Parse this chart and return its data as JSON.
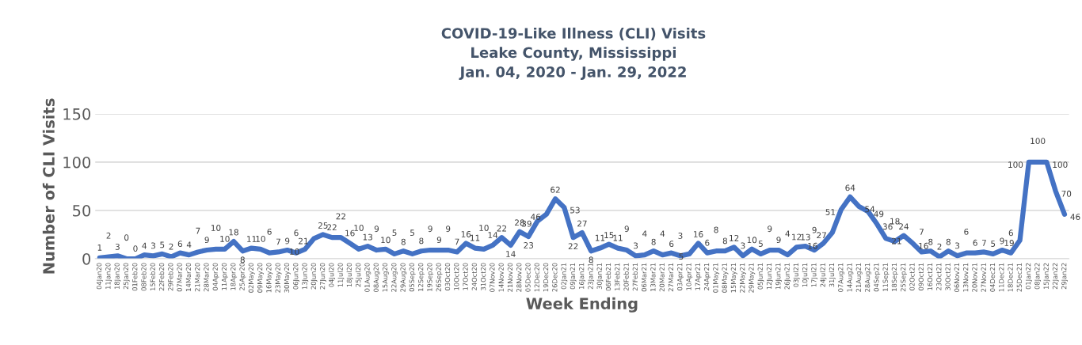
{
  "chart_data": {
    "type": "line",
    "title": "COVID-19-Like Illness (CLI) Visits\nLeake County, Mississippi\nJan. 04, 2020 - Jan. 29, 2022",
    "xlabel": "Week Ending",
    "ylabel": "Number of CLI Visits",
    "categories": [
      "04Jan20",
      "11Jan20",
      "18Jan20",
      "25Jan20",
      "01Feb20",
      "08Feb20",
      "15Feb20",
      "22Feb20",
      "29Feb20",
      "07Mar20",
      "14Mar20",
      "21Mar20",
      "28Mar20",
      "04Apr20",
      "11Apr20",
      "18Apr20",
      "25Apr20",
      "02May20",
      "09May20",
      "16May20",
      "23May20",
      "30May20",
      "06Jun20",
      "13Jun20",
      "20Jun20",
      "27Jun20",
      "04Jul20",
      "11Jul20",
      "18Jul20",
      "25Jul20",
      "01Aug20",
      "08Aug20",
      "15Aug20",
      "22Aug20",
      "29Aug20",
      "05Sep20",
      "12Sep20",
      "19Sep20",
      "26Sep20",
      "03Oct20",
      "10Oct20",
      "17Oct20",
      "24Oct20",
      "31Oct20",
      "07Nov20",
      "14Nov20",
      "21Nov20",
      "28Nov20",
      "05Dec20",
      "12Dec20",
      "19Dec20",
      "26Dec20",
      "02Jan21",
      "09Jan21",
      "16Jan21",
      "23Jan21",
      "30Jan21",
      "06Feb21",
      "13Feb21",
      "20Feb21",
      "27Feb21",
      "06Mar21",
      "13Mar21",
      "20Mar21",
      "27Mar21",
      "03Apr21",
      "10Apr21",
      "17Apr21",
      "24Apr21",
      "01May21",
      "08May21",
      "15May21",
      "22May21",
      "29May21",
      "05Jun21",
      "12Jun21",
      "19Jun21",
      "26Jun21",
      "03Jul21",
      "10Jul21",
      "17Jul21",
      "24Jul21",
      "31Jul21",
      "07Aug21",
      "14Aug21",
      "21Aug21",
      "28Aug21",
      "04Sep21",
      "11Sep21",
      "18Sep21",
      "25Sep21",
      "02Oct21",
      "09Oct21",
      "16Oct21",
      "23Oct21",
      "30Oct21",
      "06Nov21",
      "13Nov21",
      "20Nov21",
      "27Nov21",
      "04Dec21",
      "11Dec21",
      "18Dec21",
      "25Dec21",
      "01Jan22",
      "08Jan22",
      "15Jan22",
      "22Jan22",
      "29Jan22"
    ],
    "series": [
      {
        "color": "#4472c4",
        "values": [
          1,
          2,
          3,
          0,
          0,
          4,
          3,
          5,
          2,
          6,
          4,
          7,
          9,
          10,
          10,
          18,
          8,
          11,
          10,
          6,
          7,
          9,
          6,
          10,
          21,
          25,
          22,
          22,
          16,
          10,
          13,
          9,
          10,
          5,
          8,
          5,
          8,
          9,
          9,
          9,
          7,
          16,
          11,
          10,
          14,
          22,
          14,
          28,
          23,
          39,
          46,
          62,
          53,
          22,
          27,
          8,
          11,
          15,
          11,
          9,
          3,
          4,
          8,
          4,
          6,
          3,
          5,
          16,
          6,
          8,
          8,
          12,
          3,
          10,
          5,
          9,
          9,
          4,
          12,
          13,
          9,
          16,
          27,
          51,
          64,
          54,
          49,
          36,
          21,
          18,
          24,
          16,
          7,
          8,
          2,
          8,
          3,
          6,
          6,
          7,
          5,
          9,
          6,
          19,
          100,
          100,
          100,
          70,
          46
        ]
      }
    ],
    "ylim": [
      0,
      150
    ],
    "yticks": [
      0,
      50,
      100,
      150
    ],
    "grid": "y",
    "data_labels": true,
    "marker": "none",
    "line_style": "solid",
    "legend": false
  }
}
